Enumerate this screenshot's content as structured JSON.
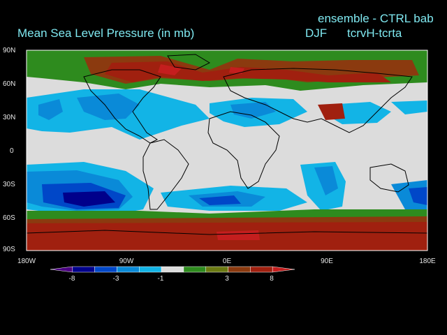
{
  "header": {
    "title": "Mean Sea Level Pressure (in mb)",
    "right_line": "ensemble - CTRL bab",
    "season": "DJF",
    "experiment": "tcrvH-tcrta"
  },
  "map": {
    "projection": "cylindrical",
    "lon_range": [
      -180,
      180
    ],
    "lat_range": [
      -90,
      90
    ],
    "lat_labels": [
      "90N",
      "60N",
      "30N",
      "0",
      "30S",
      "60S",
      "90S"
    ],
    "lon_labels": [
      "180W",
      "90W",
      "0E",
      "90E",
      "180E"
    ]
  },
  "colorbar": {
    "labels": [
      "-8",
      "-3",
      "-1",
      "3",
      "8"
    ],
    "colors": [
      "#4b0082",
      "#00008b",
      "#0047c8",
      "#0a8ad8",
      "#12b4e6",
      "#dcdcdc",
      "#2e8b1e",
      "#6b7a12",
      "#8b3a0f",
      "#a0200f",
      "#c41e1e"
    ]
  },
  "colors": {
    "background": "#000000",
    "title_text": "#7fe8f0",
    "neutral": "#dcdcdc",
    "land_lines": "#000000"
  }
}
